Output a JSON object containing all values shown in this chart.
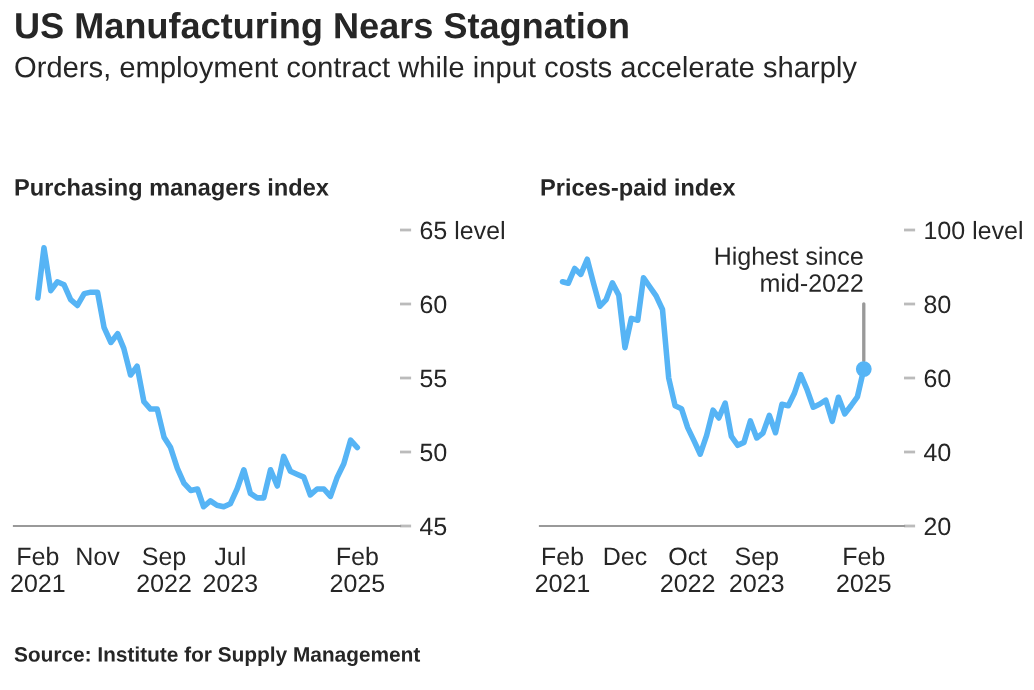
{
  "chart_data": [
    {
      "type": "line",
      "title": "Purchasing managers index",
      "x": [
        "2021-02",
        "2021-03",
        "2021-04",
        "2021-05",
        "2021-06",
        "2021-07",
        "2021-08",
        "2021-09",
        "2021-10",
        "2021-11",
        "2021-12",
        "2022-01",
        "2022-02",
        "2022-03",
        "2022-04",
        "2022-05",
        "2022-06",
        "2022-07",
        "2022-08",
        "2022-09",
        "2022-10",
        "2022-11",
        "2022-12",
        "2023-01",
        "2023-02",
        "2023-03",
        "2023-04",
        "2023-05",
        "2023-06",
        "2023-07",
        "2023-08",
        "2023-09",
        "2023-10",
        "2023-11",
        "2023-12",
        "2024-01",
        "2024-02",
        "2024-03",
        "2024-04",
        "2024-05",
        "2024-06",
        "2024-07",
        "2024-08",
        "2024-09",
        "2024-10",
        "2024-11",
        "2024-12",
        "2025-01",
        "2025-02"
      ],
      "series": [
        {
          "color": "#56b4f5",
          "values": [
            60.4,
            63.8,
            60.9,
            61.5,
            61.3,
            60.3,
            59.9,
            60.7,
            60.8,
            60.8,
            58.4,
            57.4,
            58.0,
            57.0,
            55.2,
            55.8,
            53.4,
            52.9,
            52.9,
            51.0,
            50.3,
            48.9,
            47.9,
            47.4,
            47.5,
            46.3,
            46.7,
            46.4,
            46.3,
            46.5,
            47.5,
            48.8,
            47.2,
            46.9,
            46.9,
            48.8,
            47.7,
            49.7,
            48.7,
            48.5,
            48.3,
            47.1,
            47.5,
            47.5,
            47.0,
            48.3,
            49.2,
            50.8,
            50.3
          ]
        }
      ],
      "xlim": [
        "2020-10-15",
        "2025-08-15"
      ],
      "xticks": [
        {
          "value": "2021-02",
          "label": "Feb\n2021"
        },
        {
          "value": "2021-11",
          "label": "Nov"
        },
        {
          "value": "2022-09",
          "label": "Sep\n2022"
        },
        {
          "value": "2023-07",
          "label": "Jul\n2023"
        },
        {
          "value": "2025-02",
          "label": "Feb\n2025"
        }
      ],
      "ylim": [
        45,
        65
      ],
      "yticks": [
        45,
        50,
        55,
        60,
        {
          "value": 65,
          "label": "65 level"
        }
      ],
      "grid": false,
      "legend": false,
      "line_style": "solid"
    },
    {
      "type": "line",
      "title": "Prices-paid index",
      "x": [
        "2021-02",
        "2021-03",
        "2021-04",
        "2021-05",
        "2021-06",
        "2021-07",
        "2021-08",
        "2021-09",
        "2021-10",
        "2021-11",
        "2021-12",
        "2022-01",
        "2022-02",
        "2022-03",
        "2022-04",
        "2022-05",
        "2022-06",
        "2022-07",
        "2022-08",
        "2022-09",
        "2022-10",
        "2022-11",
        "2022-12",
        "2023-01",
        "2023-02",
        "2023-03",
        "2023-04",
        "2023-05",
        "2023-06",
        "2023-07",
        "2023-08",
        "2023-09",
        "2023-10",
        "2023-11",
        "2023-12",
        "2024-01",
        "2024-02",
        "2024-03",
        "2024-04",
        "2024-05",
        "2024-06",
        "2024-07",
        "2024-08",
        "2024-09",
        "2024-10",
        "2024-11",
        "2024-12",
        "2025-01",
        "2025-02"
      ],
      "series": [
        {
          "color": "#56b4f5",
          "values": [
            86.0,
            85.6,
            89.6,
            88.0,
            92.1,
            85.7,
            79.4,
            81.2,
            85.7,
            82.4,
            68.2,
            76.1,
            75.6,
            87.1,
            84.6,
            82.2,
            78.5,
            60.0,
            52.5,
            51.7,
            46.6,
            43.0,
            39.4,
            44.5,
            51.3,
            49.2,
            53.2,
            44.2,
            41.8,
            42.6,
            48.4,
            43.8,
            45.1,
            49.9,
            45.2,
            52.9,
            52.5,
            55.8,
            60.9,
            57.0,
            52.1,
            52.9,
            54.0,
            48.3,
            54.8,
            50.3,
            52.5,
            54.9,
            62.4
          ]
        }
      ],
      "xlim": [
        "2020-10-15",
        "2025-08-15"
      ],
      "xticks": [
        {
          "value": "2021-02",
          "label": "Feb\n2021"
        },
        {
          "value": "2021-12",
          "label": "Dec"
        },
        {
          "value": "2022-10",
          "label": "Oct\n2022"
        },
        {
          "value": "2023-09",
          "label": "Sep\n2023"
        },
        {
          "value": "2025-02",
          "label": "Feb\n2025"
        }
      ],
      "ylim": [
        20,
        100
      ],
      "yticks": [
        20,
        40,
        60,
        80,
        {
          "value": 100,
          "label": "100 level"
        }
      ],
      "annotations": [
        {
          "text": "Highest since\nmid-2022",
          "x": "2025-02",
          "y": 62.4
        }
      ],
      "grid": false,
      "legend": false,
      "line_style": "solid"
    },
    {
      "type": "other",
      "title": "US Manufacturing Nears Stagnation",
      "subtitle": "Orders, employment contract while input costs accelerate sharply",
      "annotations": [
        "Source: Institute for Supply Management"
      ]
    }
  ]
}
